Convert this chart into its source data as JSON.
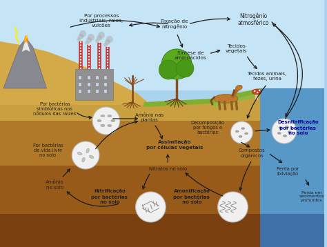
{
  "bg_sky_top": "#aad4ee",
  "bg_sky_bot": "#c8e8f8",
  "ground_color1": "#c8a040",
  "ground_color2": "#b07828",
  "ground_color3": "#985a18",
  "ground_color4": "#7a4010",
  "water_color": "#5898c8",
  "grass_color": "#7ab840",
  "labels": {
    "nitro_atm": "Nitrogênio\natmosférico",
    "fixacao": "Fixação de\nnitrogênio",
    "processos": "Por processos\nindustriais, raios,\nvulcões",
    "sintese": "Síntese de\naminoácidos",
    "tec_veg": "Tecidos\nvegetais",
    "tec_ani": "Tecidos animais,\nfezes, urina",
    "decomp": "Decomposição\npor fungos e\nbactérias",
    "denitrif": "Desnitrificação\npor bactérias\nno solo",
    "compostos": "Compostos\norgânicos",
    "perda_lixiv": "Perda por\nlixiviação",
    "perda_sed": "Perda em\nsedimentos\nprofundos",
    "assimilacao": "Assimilação\npor células vegetais",
    "nitratos": "Nitratos no solo",
    "nitrif": "Nitrificação\npor bactérias\nno solo",
    "amonio_solo": "Amônio\nno solo",
    "amonio_plantas": "Amônio nas\nplantas",
    "bact_livre": "Por bactérias\nde vida livre\nno solo",
    "bact_simb": "Por bactérias\nsimbióticas nos\nnódulos das raízes",
    "amonif": "Amonificação\npor bactérias\nno solo"
  },
  "arrow_color": "#1a1a1a"
}
